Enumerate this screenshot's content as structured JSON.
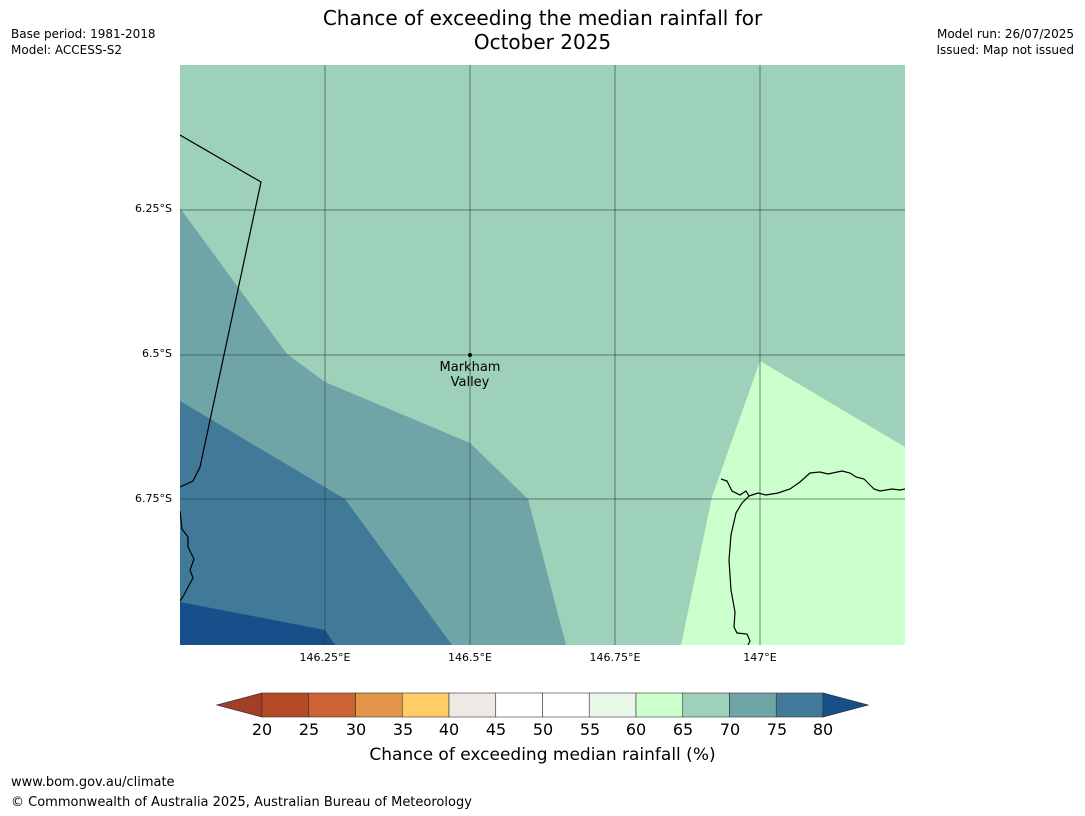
{
  "header": {
    "title_line1": "Chance of exceeding the median rainfall for",
    "title_line2": "October 2025",
    "base_period": "Base period: 1981-2018",
    "model": "Model: ACCESS-S2",
    "model_run": "Model run: 26/07/2025",
    "issued": "Issued: Map not issued"
  },
  "map": {
    "lat_ticks": [
      "6.25°S",
      "6.5°S",
      "6.75°S"
    ],
    "lon_ticks": [
      "146.25°E",
      "146.5°E",
      "146.75°E",
      "147°E"
    ],
    "place": {
      "name_line1": "Markham",
      "name_line2": "Valley"
    },
    "zone_colors": {
      "55-60": "#ccffcc",
      "60-65": "#cbffcb",
      "65-70": "#9ed1b9",
      "70-75": "#70a5a8",
      "75-80": "#417a98",
      "80+": "#164f8a"
    }
  },
  "colorbar": {
    "labels": [
      "20",
      "25",
      "30",
      "35",
      "40",
      "45",
      "50",
      "55",
      "60",
      "65",
      "70",
      "75",
      "80"
    ],
    "colors": [
      "#a33f28",
      "#b54a26",
      "#cd6232",
      "#e39549",
      "#ffcc66",
      "#ede9e5",
      "#ffffff",
      "#ffffff",
      "#e9f7e9",
      "#ccffcc",
      "#9ed1b9",
      "#70a5a8",
      "#417a98",
      "#164f8a"
    ],
    "title": "Chance of exceeding median rainfall (%)"
  },
  "footer": {
    "url": "www.bom.gov.au/climate",
    "copyright": "© Commonwealth of Australia 2025, Australian Bureau of Meteorology"
  }
}
